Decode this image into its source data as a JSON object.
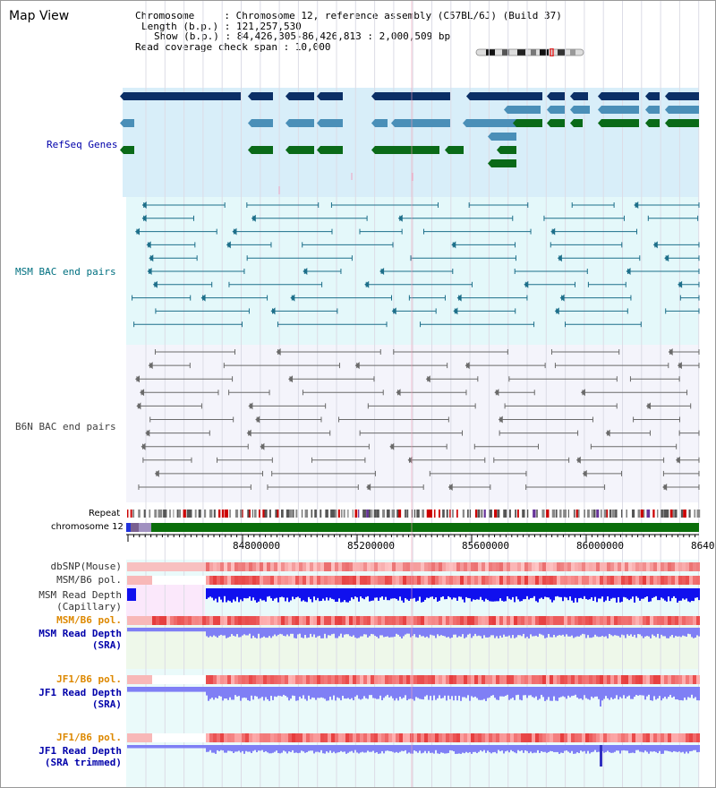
{
  "title": "Map View",
  "info": {
    "line1": "Chromosome     : Chromosome 12, reference assembly (C57BL/6J) (Build 37)",
    "line2": "Length (b.p.) : 121,257,530",
    "line3": "Show (b.p.) : 84,426,305-86,426,813 : 2,000,509 bp",
    "line4": "Read coverage check span : 10,000"
  },
  "tracks": {
    "refseq": "RefSeq Genes",
    "msm_bac": "MSM BAC end pairs",
    "b6n_bac": "B6N BAC end pairs",
    "repeat": "Repeat",
    "chromosome": "chromosome 12",
    "dbsnp": "dbSNP(Mouse)",
    "msm_b6_pol_cap": "MSM/B6 pol.",
    "msm_depth_cap_1": "MSM Read Depth",
    "msm_depth_cap_2": "(Capillary)",
    "msm_b6_pol_sra": "MSM/B6 pol.",
    "msm_depth_sra_1": "MSM Read Depth",
    "msm_depth_sra_2": "(SRA)",
    "jf1_b6_pol_sra": "JF1/B6 pol.",
    "jf1_depth_sra_1": "JF1 Read Depth",
    "jf1_depth_sra_2": "(SRA)",
    "jf1_b6_pol_trim": "JF1/B6 pol.",
    "jf1_depth_trim_1": "JF1 Read Depth",
    "jf1_depth_trim_2": "(SRA trimmed)"
  },
  "axis": {
    "ticks": [
      "84800000",
      "85200000",
      "85600000",
      "86000000",
      "8640"
    ]
  },
  "colors": {
    "refseq_bg": "#d8eef9",
    "msm_bac_bg": "#e4f8fa",
    "b6n_bg": "#f4f4fb",
    "gene_dark": "#0b2f66",
    "gene_mid": "#4a8fb8",
    "gene_green": "#0a6a18",
    "bac_teal": "#1d6f8a",
    "bac_gray": "#6a6a6a",
    "chrom_green": "#0a6e0a",
    "depth_blue": "#1010ee",
    "depth_light": "#7f7ff5",
    "label_blue": "#0000aa",
    "label_teal": "#007080",
    "label_orange": "#dd8800"
  }
}
